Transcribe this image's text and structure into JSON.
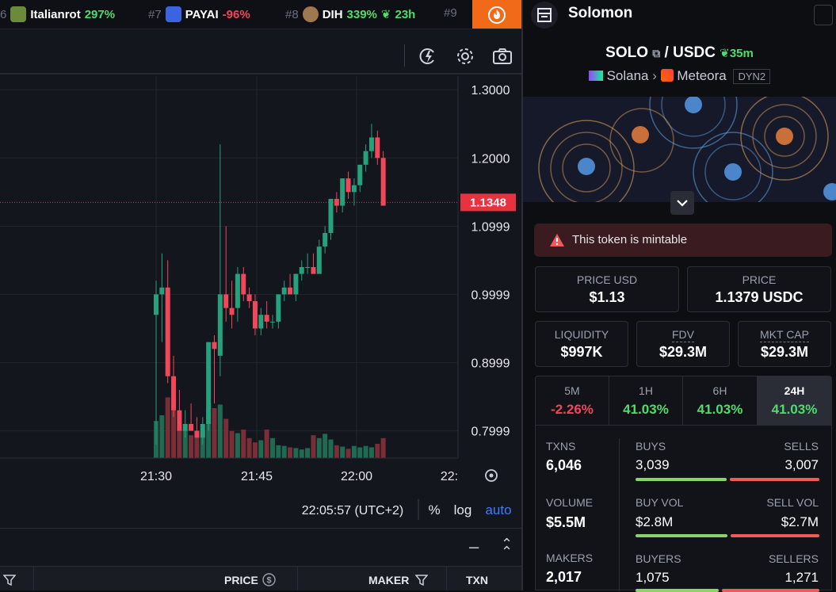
{
  "ticker": [
    {
      "rank": "6",
      "name": "Italianrot",
      "change": "297%",
      "dir": "up"
    },
    {
      "rank": "#7",
      "name": "PAYAI",
      "change": "-96%",
      "dir": "dn"
    },
    {
      "rank": "#8",
      "name": "DIH",
      "change": "339%",
      "dir": "up",
      "age": "23h"
    },
    {
      "rank": "#9",
      "name": "",
      "change": "",
      "dir": ""
    }
  ],
  "chart": {
    "price_labels": [
      "1.3000",
      "1.2000",
      "1.0999",
      "0.9999",
      "0.8999",
      "0.7999"
    ],
    "current_price": "1.1348",
    "time_labels": [
      "21:30",
      "21:45",
      "22:00",
      "22:"
    ],
    "clock": "22:05:57 (UTC+2)",
    "pct_label": "%",
    "log_label": "log",
    "auto_label": "auto",
    "colors": {
      "up": "#26a17b",
      "down": "#f0475a",
      "current": "#e8323f"
    }
  },
  "chart_data": {
    "type": "candlestick",
    "ylim": [
      0.76,
      1.32
    ],
    "x_labels": [
      "21:30",
      "21:45",
      "22:00",
      "22:"
    ],
    "candles": [
      {
        "o": 0.97,
        "h": 1.02,
        "l": 0.78,
        "c": 1.0
      },
      {
        "o": 1.0,
        "h": 1.06,
        "l": 0.93,
        "c": 1.01
      },
      {
        "o": 1.01,
        "h": 1.05,
        "l": 0.87,
        "c": 0.88
      },
      {
        "o": 0.88,
        "h": 0.91,
        "l": 0.82,
        "c": 0.83
      },
      {
        "o": 0.83,
        "h": 0.86,
        "l": 0.8,
        "c": 0.8
      },
      {
        "o": 0.8,
        "h": 0.83,
        "l": 0.79,
        "c": 0.81
      },
      {
        "o": 0.81,
        "h": 0.84,
        "l": 0.8,
        "c": 0.8
      },
      {
        "o": 0.8,
        "h": 0.82,
        "l": 0.79,
        "c": 0.79
      },
      {
        "o": 0.79,
        "h": 0.82,
        "l": 0.78,
        "c": 0.81
      },
      {
        "o": 0.81,
        "h": 0.93,
        "l": 0.8,
        "c": 0.93
      },
      {
        "o": 0.93,
        "h": 0.94,
        "l": 0.84,
        "c": 0.92
      },
      {
        "o": 0.91,
        "h": 1.22,
        "l": 0.88,
        "c": 1.0
      },
      {
        "o": 1.0,
        "h": 1.1,
        "l": 0.96,
        "c": 0.98
      },
      {
        "o": 0.98,
        "h": 1.02,
        "l": 0.95,
        "c": 0.97
      },
      {
        "o": 0.98,
        "h": 1.04,
        "l": 0.96,
        "c": 1.03
      },
      {
        "o": 1.03,
        "h": 1.04,
        "l": 0.99,
        "c": 1.0
      },
      {
        "o": 1.0,
        "h": 1.01,
        "l": 0.98,
        "c": 0.99
      },
      {
        "o": 0.99,
        "h": 1.0,
        "l": 0.94,
        "c": 0.95
      },
      {
        "o": 0.95,
        "h": 0.98,
        "l": 0.94,
        "c": 0.97
      },
      {
        "o": 0.97,
        "h": 0.99,
        "l": 0.95,
        "c": 0.96
      },
      {
        "o": 0.96,
        "h": 0.97,
        "l": 0.95,
        "c": 0.96
      },
      {
        "o": 0.96,
        "h": 1.0,
        "l": 0.95,
        "c": 1.0
      },
      {
        "o": 1.0,
        "h": 1.02,
        "l": 0.99,
        "c": 1.01
      },
      {
        "o": 1.01,
        "h": 1.03,
        "l": 1.0,
        "c": 1.0
      },
      {
        "o": 1.0,
        "h": 1.03,
        "l": 0.99,
        "c": 1.03
      },
      {
        "o": 1.03,
        "h": 1.05,
        "l": 1.02,
        "c": 1.04
      },
      {
        "o": 1.04,
        "h": 1.06,
        "l": 1.03,
        "c": 1.04
      },
      {
        "o": 1.04,
        "h": 1.06,
        "l": 1.03,
        "c": 1.03
      },
      {
        "o": 1.03,
        "h": 1.08,
        "l": 1.03,
        "c": 1.07
      },
      {
        "o": 1.07,
        "h": 1.1,
        "l": 1.06,
        "c": 1.09
      },
      {
        "o": 1.09,
        "h": 1.14,
        "l": 1.08,
        "c": 1.14
      },
      {
        "o": 1.14,
        "h": 1.15,
        "l": 1.12,
        "c": 1.13
      },
      {
        "o": 1.13,
        "h": 1.17,
        "l": 1.12,
        "c": 1.17
      },
      {
        "o": 1.17,
        "h": 1.18,
        "l": 1.14,
        "c": 1.15
      },
      {
        "o": 1.15,
        "h": 1.17,
        "l": 1.13,
        "c": 1.16
      },
      {
        "o": 1.16,
        "h": 1.19,
        "l": 1.15,
        "c": 1.19
      },
      {
        "o": 1.19,
        "h": 1.22,
        "l": 1.18,
        "c": 1.21
      },
      {
        "o": 1.21,
        "h": 1.25,
        "l": 1.2,
        "c": 1.23
      },
      {
        "o": 1.23,
        "h": 1.24,
        "l": 1.19,
        "c": 1.2
      },
      {
        "o": 1.2,
        "h": 1.21,
        "l": 1.13,
        "c": 1.13
      }
    ],
    "volumes": [
      52,
      60,
      85,
      78,
      48,
      40,
      32,
      30,
      38,
      70,
      70,
      75,
      55,
      38,
      35,
      40,
      28,
      22,
      25,
      40,
      28,
      18,
      17,
      15,
      14,
      12,
      14,
      32,
      28,
      34,
      26,
      18,
      16,
      13,
      17,
      15,
      17,
      15,
      20,
      28
    ]
  },
  "footer": {
    "collapse": "–",
    "expand": "⌃"
  },
  "table": {
    "col_price": "PRICE",
    "col_maker": "MAKER",
    "col_txn": "TXN"
  },
  "token": {
    "name": "Solomon",
    "base": "SOLO",
    "slash": "/",
    "quote": "USDC",
    "age": "35m",
    "chain": "Solana",
    "dex": "Meteora",
    "pool_tag": "DYN2",
    "warning": "This token is mintable",
    "price_usd_label": "PRICE USD",
    "price_usd": "$1.13",
    "price_label": "PRICE",
    "price": "1.1379 USDC",
    "liq_label": "LIQUIDITY",
    "liq": "$997K",
    "fdv_label": "FDV",
    "fdv": "$29.3M",
    "mcap_label": "MKT CAP",
    "mcap": "$29.3M"
  },
  "timeframes": [
    {
      "label": "5M",
      "value": "-2.26%",
      "dir": "dn"
    },
    {
      "label": "1H",
      "value": "41.03%",
      "dir": "up"
    },
    {
      "label": "6H",
      "value": "41.03%",
      "dir": "up"
    },
    {
      "label": "24H",
      "value": "41.03%",
      "dir": "up",
      "active": true
    }
  ],
  "stats": {
    "txns_label": "TXNS",
    "txns": "6,046",
    "buys_label": "BUYS",
    "buys": "3,039",
    "sells_label": "SELLS",
    "sells": "3,007",
    "vol_label": "VOLUME",
    "vol": "$5.5M",
    "buyvol_label": "BUY VOL",
    "buyvol": "$2.8M",
    "sellvol_label": "SELL VOL",
    "sellvol": "$2.7M",
    "makers_label": "MAKERS",
    "makers": "2,017",
    "buyers_label": "BUYERS",
    "buyers": "1,075",
    "sellers_label": "SELLERS",
    "sellers": "1,271",
    "buy_ratio": 0.503,
    "buyvol_ratio": 0.51,
    "buyers_ratio": 0.46
  }
}
